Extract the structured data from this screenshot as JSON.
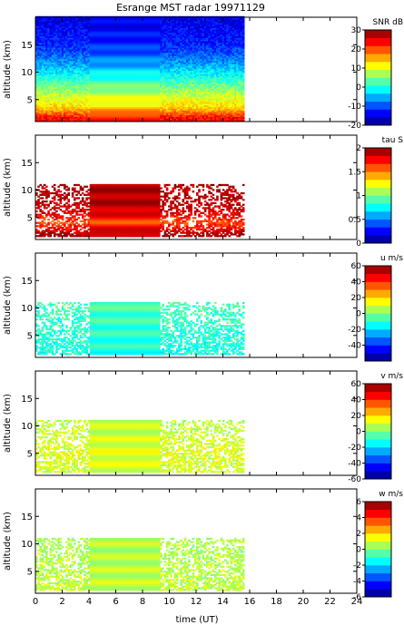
{
  "chart_data": {
    "title": "Esrange MST radar 19971129",
    "xlabel": "time (UT)",
    "xlim": [
      0,
      24
    ],
    "xticks": [
      0,
      2,
      4,
      6,
      8,
      10,
      12,
      14,
      16,
      18,
      20,
      22,
      24
    ],
    "panels": [
      {
        "type": "heatmap",
        "ylabel": "altitude (km)",
        "ylim": [
          1,
          20
        ],
        "yticks": [
          5,
          10,
          15
        ],
        "colorbar_label": "SNR dB",
        "colorbar_range": [
          -20,
          30
        ],
        "colorbar_ticks": [
          -20,
          -10,
          0,
          10,
          20,
          30
        ],
        "data_time_range": [
          0,
          15.5
        ],
        "interp_gap": [
          4,
          9.2
        ],
        "profile": [
          {
            "alt": 1.5,
            "value": 24
          },
          {
            "alt": 2.5,
            "value": 18
          },
          {
            "alt": 3.5,
            "value": 13
          },
          {
            "alt": 5,
            "value": 10
          },
          {
            "alt": 7,
            "value": 5
          },
          {
            "alt": 9,
            "value": 0
          },
          {
            "alt": 11,
            "value": -5
          },
          {
            "alt": 13,
            "value": -9
          },
          {
            "alt": 15,
            "value": -12
          },
          {
            "alt": 18,
            "value": -14
          },
          {
            "alt": 20,
            "value": -15
          }
        ]
      },
      {
        "type": "heatmap",
        "ylabel": "altitude (km)",
        "ylim": [
          1,
          20
        ],
        "yticks": [
          5,
          10,
          15
        ],
        "colorbar_label": "tau S",
        "colorbar_range": [
          0,
          2
        ],
        "colorbar_ticks": [
          0,
          0.5,
          1,
          1.5,
          2
        ],
        "data_time_range": [
          0,
          15.5
        ],
        "data_alt_range": [
          1.5,
          11
        ],
        "interp_gap": [
          4,
          9.2
        ],
        "profile": [
          {
            "alt": 2,
            "value": 1.9
          },
          {
            "alt": 4,
            "value": 1.6
          },
          {
            "alt": 6,
            "value": 1.85
          },
          {
            "alt": 8,
            "value": 1.9
          },
          {
            "alt": 10,
            "value": 1.9
          }
        ]
      },
      {
        "type": "heatmap",
        "ylabel": "altitude (km)",
        "ylim": [
          1,
          20
        ],
        "yticks": [
          5,
          10,
          15
        ],
        "colorbar_label": "u m/s",
        "colorbar_range": [
          -60,
          60
        ],
        "colorbar_ticks": [
          -40,
          -20,
          0,
          20,
          40,
          60
        ],
        "data_time_range": [
          0,
          15.5
        ],
        "data_alt_range": [
          1.5,
          11
        ],
        "interp_gap": [
          4,
          9.2
        ],
        "profile": [
          {
            "alt": 2,
            "value": -12
          },
          {
            "alt": 5,
            "value": -10
          },
          {
            "alt": 8,
            "value": -8
          },
          {
            "alt": 11,
            "value": -6
          }
        ]
      },
      {
        "type": "heatmap",
        "ylabel": "altitude (km)",
        "ylim": [
          1,
          20
        ],
        "yticks": [
          5,
          10,
          15
        ],
        "colorbar_label": "v m/s",
        "colorbar_range": [
          -60,
          60
        ],
        "colorbar_ticks": [
          -60,
          -40,
          -20,
          0,
          20,
          40,
          60
        ],
        "data_time_range": [
          0,
          15.5
        ],
        "data_alt_range": [
          1.5,
          11
        ],
        "interp_gap": [
          4,
          9.2
        ],
        "profile": [
          {
            "alt": 2,
            "value": 10
          },
          {
            "alt": 5,
            "value": 12
          },
          {
            "alt": 8,
            "value": 9
          },
          {
            "alt": 11,
            "value": 7
          }
        ]
      },
      {
        "type": "heatmap",
        "ylabel": "altitude (km)",
        "ylim": [
          1,
          20
        ],
        "yticks": [
          5,
          10,
          15
        ],
        "colorbar_label": "w m/s",
        "colorbar_range": [
          -6,
          6
        ],
        "colorbar_ticks": [
          -6,
          -4,
          -2,
          0,
          2,
          4,
          6
        ],
        "data_time_range": [
          0,
          15.5
        ],
        "data_alt_range": [
          1.5,
          11
        ],
        "interp_gap": [
          4,
          9.2
        ],
        "profile": [
          {
            "alt": 2,
            "value": 0.8
          },
          {
            "alt": 5,
            "value": 0.7
          },
          {
            "alt": 8,
            "value": 0.6
          },
          {
            "alt": 11,
            "value": 0.6
          }
        ]
      }
    ]
  }
}
